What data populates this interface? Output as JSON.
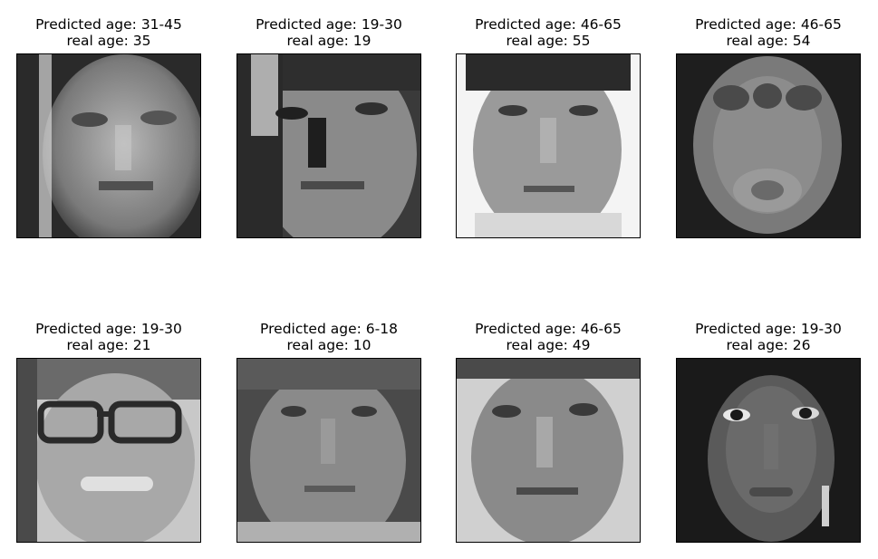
{
  "figure": {
    "panels": [
      {
        "title_line1": "Predicted age: 31-45",
        "title_line2": "real age: 35",
        "image": "grayscale face photo, man, short hair",
        "icon": "face-photo"
      },
      {
        "title_line1": "Predicted age: 19-30",
        "title_line2": "real age: 19",
        "image": "grayscale face photo, young man, strong side light",
        "icon": "face-photo"
      },
      {
        "title_line1": "Predicted age: 46-65",
        "title_line2": "real age: 55",
        "image": "grayscale face photo, older man, light background",
        "icon": "face-photo"
      },
      {
        "title_line1": "Predicted age: 46-65",
        "title_line2": "real age: 54",
        "image": "grayscale blurred face-like blob",
        "icon": "face-photo"
      },
      {
        "title_line1": "Predicted age: 19-30",
        "title_line2": "real age: 21",
        "image": "grayscale face photo, young woman with glasses",
        "icon": "face-photo"
      },
      {
        "title_line1": "Predicted age: 6-18",
        "title_line2": "real age: 10",
        "image": "grayscale face photo, child",
        "icon": "face-photo"
      },
      {
        "title_line1": "Predicted age: 46-65",
        "title_line2": "real age: 49",
        "image": "grayscale face photo, middle-aged man",
        "icon": "face-photo"
      },
      {
        "title_line1": "Predicted age: 19-30",
        "title_line2": "real age: 26",
        "image": "grayscale face photo, young woman, dark background",
        "icon": "face-photo"
      }
    ]
  }
}
